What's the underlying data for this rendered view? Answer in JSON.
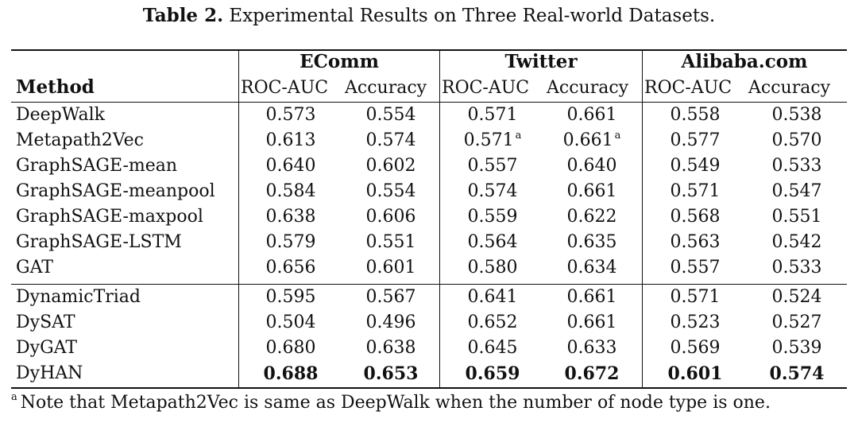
{
  "caption": {
    "label": "Table 2.",
    "text": "Experimental Results on Three Real-world Datasets."
  },
  "header": {
    "method": "Method",
    "groups": [
      "EComm",
      "Twitter",
      "Alibaba.com"
    ],
    "metrics": [
      "ROC-AUC",
      "Accuracy",
      "ROC-AUC",
      "Accuracy",
      "ROC-AUC",
      "Accuracy"
    ]
  },
  "rows": [
    {
      "method": "DeepWalk",
      "values": [
        "0.573",
        "0.554",
        "0.571",
        "0.661",
        "0.558",
        "0.538"
      ]
    },
    {
      "method": "Metapath2Vec",
      "values": [
        "0.613",
        "0.574",
        "0.571",
        "0.661",
        "0.577",
        "0.570"
      ],
      "sup": [
        "",
        "",
        "a",
        "a",
        "",
        ""
      ]
    },
    {
      "method": "GraphSAGE-mean",
      "values": [
        "0.640",
        "0.602",
        "0.557",
        "0.640",
        "0.549",
        "0.533"
      ]
    },
    {
      "method": "GraphSAGE-meanpool",
      "values": [
        "0.584",
        "0.554",
        "0.574",
        "0.661",
        "0.571",
        "0.547"
      ]
    },
    {
      "method": "GraphSAGE-maxpool",
      "values": [
        "0.638",
        "0.606",
        "0.559",
        "0.622",
        "0.568",
        "0.551"
      ]
    },
    {
      "method": "GraphSAGE-LSTM",
      "values": [
        "0.579",
        "0.551",
        "0.564",
        "0.635",
        "0.563",
        "0.542"
      ]
    },
    {
      "method": "GAT",
      "values": [
        "0.656",
        "0.601",
        "0.580",
        "0.634",
        "0.557",
        "0.533"
      ]
    },
    {
      "method": "DynamicTriad",
      "values": [
        "0.595",
        "0.567",
        "0.641",
        "0.661",
        "0.571",
        "0.524"
      ]
    },
    {
      "method": "DySAT",
      "values": [
        "0.504",
        "0.496",
        "0.652",
        "0.661",
        "0.523",
        "0.527"
      ]
    },
    {
      "method": "DyGAT",
      "values": [
        "0.680",
        "0.638",
        "0.645",
        "0.633",
        "0.569",
        "0.539"
      ]
    },
    {
      "method": "DyHAN",
      "values": [
        "0.688",
        "0.653",
        "0.659",
        "0.672",
        "0.601",
        "0.574"
      ],
      "bold": true
    }
  ],
  "footnote": {
    "marker": "a",
    "text": "Note that Metapath2Vec is same as DeepWalk when the number of node type is one."
  }
}
